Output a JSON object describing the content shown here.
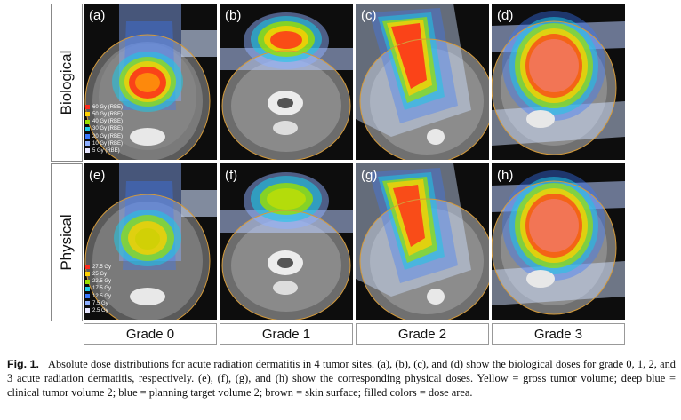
{
  "rows": {
    "biological": "Biological",
    "physical": "Physical"
  },
  "panels": {
    "a": "(a)",
    "b": "(b)",
    "c": "(c)",
    "d": "(d)",
    "e": "(e)",
    "f": "(f)",
    "g": "(g)",
    "h": "(h)"
  },
  "legend_biological": [
    {
      "label": "60 Gy (RBE)",
      "color": "#ff2a1a"
    },
    {
      "label": "50 Gy (RBE)",
      "color": "#ffd000"
    },
    {
      "label": "40 Gy (RBE)",
      "color": "#9be000"
    },
    {
      "label": "30 Gy (RBE)",
      "color": "#1ec8e6"
    },
    {
      "label": "20 Gy (RBE)",
      "color": "#3a78ff"
    },
    {
      "label": "10 Gy (RBE)",
      "color": "#8fb0ff"
    },
    {
      "label": "5 Gy (RBE)",
      "color": "#e6e6ff"
    }
  ],
  "legend_physical": [
    {
      "label": "27.5 Gy",
      "color": "#ff2a1a"
    },
    {
      "label": "25 Gy",
      "color": "#ffd000"
    },
    {
      "label": "22.5 Gy",
      "color": "#9be000"
    },
    {
      "label": "17.5 Gy",
      "color": "#1ec8e6"
    },
    {
      "label": "12.5 Gy",
      "color": "#3a78ff"
    },
    {
      "label": "7.5 Gy",
      "color": "#8fb0ff"
    },
    {
      "label": "2.5 Gy",
      "color": "#e6e6ff"
    }
  ],
  "grades": [
    "Grade 0",
    "Grade 1",
    "Grade 2",
    "Grade 3"
  ],
  "caption": {
    "fig_id": "Fig. 1.",
    "text": "Absolute dose distributions for acute radiation dermatitis in 4 tumor sites. (a), (b), (c), and (d) show the biological doses for grade 0, 1, 2, and 3 acute radiation dermatitis, respectively. (e), (f), (g), and (h) show the corresponding physical doses. Yellow = gross tumor volume; deep blue = clinical tumor volume 2; blue = planning target volume 2; brown = skin surface; filled colors = dose area."
  }
}
